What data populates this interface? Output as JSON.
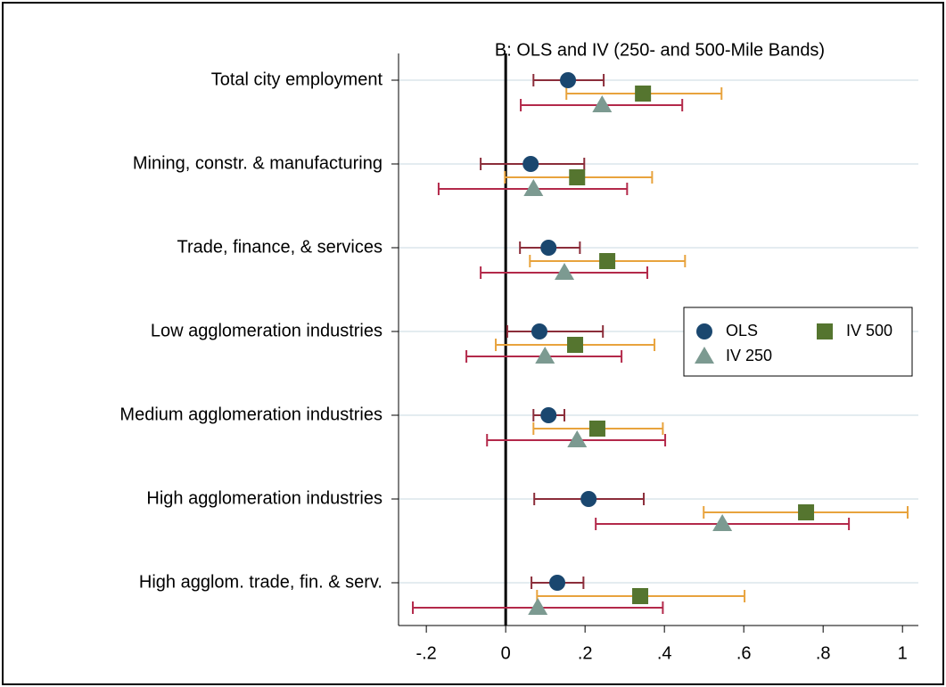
{
  "chart_data": {
    "type": "coefplot",
    "title": "B: OLS and IV (250- and 500-Mile Bands)",
    "categories": [
      "Total city employment",
      "Mining, constr. & manufacturing",
      "Trade, finance, & services",
      "Low agglomeration industries",
      "Medium agglomeration industries",
      "High agglomeration industries",
      "High agglom. trade, fin. & serv."
    ],
    "series": [
      {
        "name": "OLS",
        "color": "#1a476f",
        "ci_color": "#8b2d3a",
        "marker": "circle",
        "values": [
          0.157,
          0.063,
          0.108,
          0.085,
          0.108,
          0.209,
          0.13
        ],
        "lower": [
          0.07,
          -0.063,
          0.036,
          0.004,
          0.07,
          0.072,
          0.065
        ],
        "upper": [
          0.247,
          0.198,
          0.187,
          0.245,
          0.148,
          0.348,
          0.196
        ]
      },
      {
        "name": "IV 500",
        "color": "#55752f",
        "ci_color": "#e8a33d",
        "marker": "square",
        "values": [
          0.346,
          0.18,
          0.256,
          0.175,
          0.231,
          0.757,
          0.339
        ],
        "lower": [
          0.153,
          -0.002,
          0.061,
          -0.025,
          0.07,
          0.499,
          0.079
        ],
        "upper": [
          0.544,
          0.369,
          0.452,
          0.375,
          0.396,
          1.013,
          0.602
        ]
      },
      {
        "name": "IV 250",
        "color": "#7c9a91",
        "ci_color": "#b3294a",
        "marker": "triangle",
        "values": [
          0.243,
          0.07,
          0.148,
          0.099,
          0.18,
          0.546,
          0.081
        ],
        "lower": [
          0.038,
          -0.169,
          -0.063,
          -0.099,
          -0.047,
          0.227,
          -0.234
        ],
        "upper": [
          0.445,
          0.306,
          0.357,
          0.292,
          0.402,
          0.865,
          0.396
        ]
      }
    ],
    "xlim": [
      -0.27,
      1.04
    ],
    "xticks": [
      {
        "value": -0.2,
        "label": "-.2"
      },
      0,
      {
        "value": 0.2,
        "label": ".2"
      },
      {
        "value": 0.4,
        "label": ".4"
      },
      {
        "value": 0.6,
        "label": ".6"
      },
      {
        "value": 0.8,
        "label": ".8"
      },
      1
    ],
    "reference_line": 0,
    "grid": true,
    "legend": "right"
  }
}
